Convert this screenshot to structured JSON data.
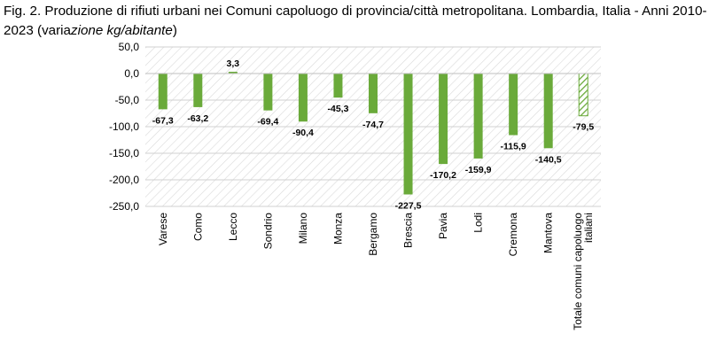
{
  "figure": {
    "title_main": "Fig. 2. Produzione di rifiuti urbani nei Comuni capoluogo di provincia/città metropolitana. Lombardia, Italia - Anni 2010-2023",
    "title_paren_open": " (varia",
    "title_italic": "zione kg/abitante",
    "title_paren_close": ")"
  },
  "chart_data": {
    "type": "bar",
    "title": "Fig. 2. Produzione di rifiuti urbani nei Comuni capoluogo di provincia/città metropolitana. Lombardia, Italia - Anni 2010-2023 (variazione kg/abitante)",
    "xlabel": "",
    "ylabel": "",
    "categories": [
      "Varese",
      "Como",
      "Lecco",
      "Sondrio",
      "Milano",
      "Monza",
      "Bergamo",
      "Brescia",
      "Pavia",
      "Lodi",
      "Cremona",
      "Mantova",
      "Totale comuni capoluogo italiani"
    ],
    "category_lines": [
      [
        "Varese"
      ],
      [
        "Como"
      ],
      [
        "Lecco"
      ],
      [
        "Sondrio"
      ],
      [
        "Milano"
      ],
      [
        "Monza"
      ],
      [
        "Bergamo"
      ],
      [
        "Brescia"
      ],
      [
        "Pavia"
      ],
      [
        "Lodi"
      ],
      [
        "Cremona"
      ],
      [
        "Mantova"
      ],
      [
        "Totale comuni capoluogo",
        "italiani"
      ]
    ],
    "values": [
      -67.3,
      -63.2,
      3.3,
      -69.4,
      -90.4,
      -45.3,
      -74.7,
      -227.5,
      -170.2,
      -159.9,
      -115.9,
      -140.5,
      -79.5
    ],
    "value_labels": [
      "-67,3",
      "-63,2",
      "3,3",
      "-69,4",
      "-90,4",
      "-45,3",
      "-74,7",
      "-227,5",
      "-170,2",
      "-159,9",
      "-115,9",
      "-140,5",
      "-79,5"
    ],
    "ylim": [
      -250,
      50
    ],
    "yticks": [
      50,
      0,
      -50,
      -100,
      -150,
      -200,
      -250
    ],
    "ytick_labels": [
      "50,0",
      "0,0",
      "-50,0",
      "-100,0",
      "-150,0",
      "-200,0",
      "-250,0"
    ],
    "bar_color": "#6aaa3a",
    "hatched_categories": [
      "Totale comuni capoluogo italiani"
    ],
    "gridlines": true,
    "plot_background": "diagonal-hatch-light-gray",
    "legend": "none"
  }
}
